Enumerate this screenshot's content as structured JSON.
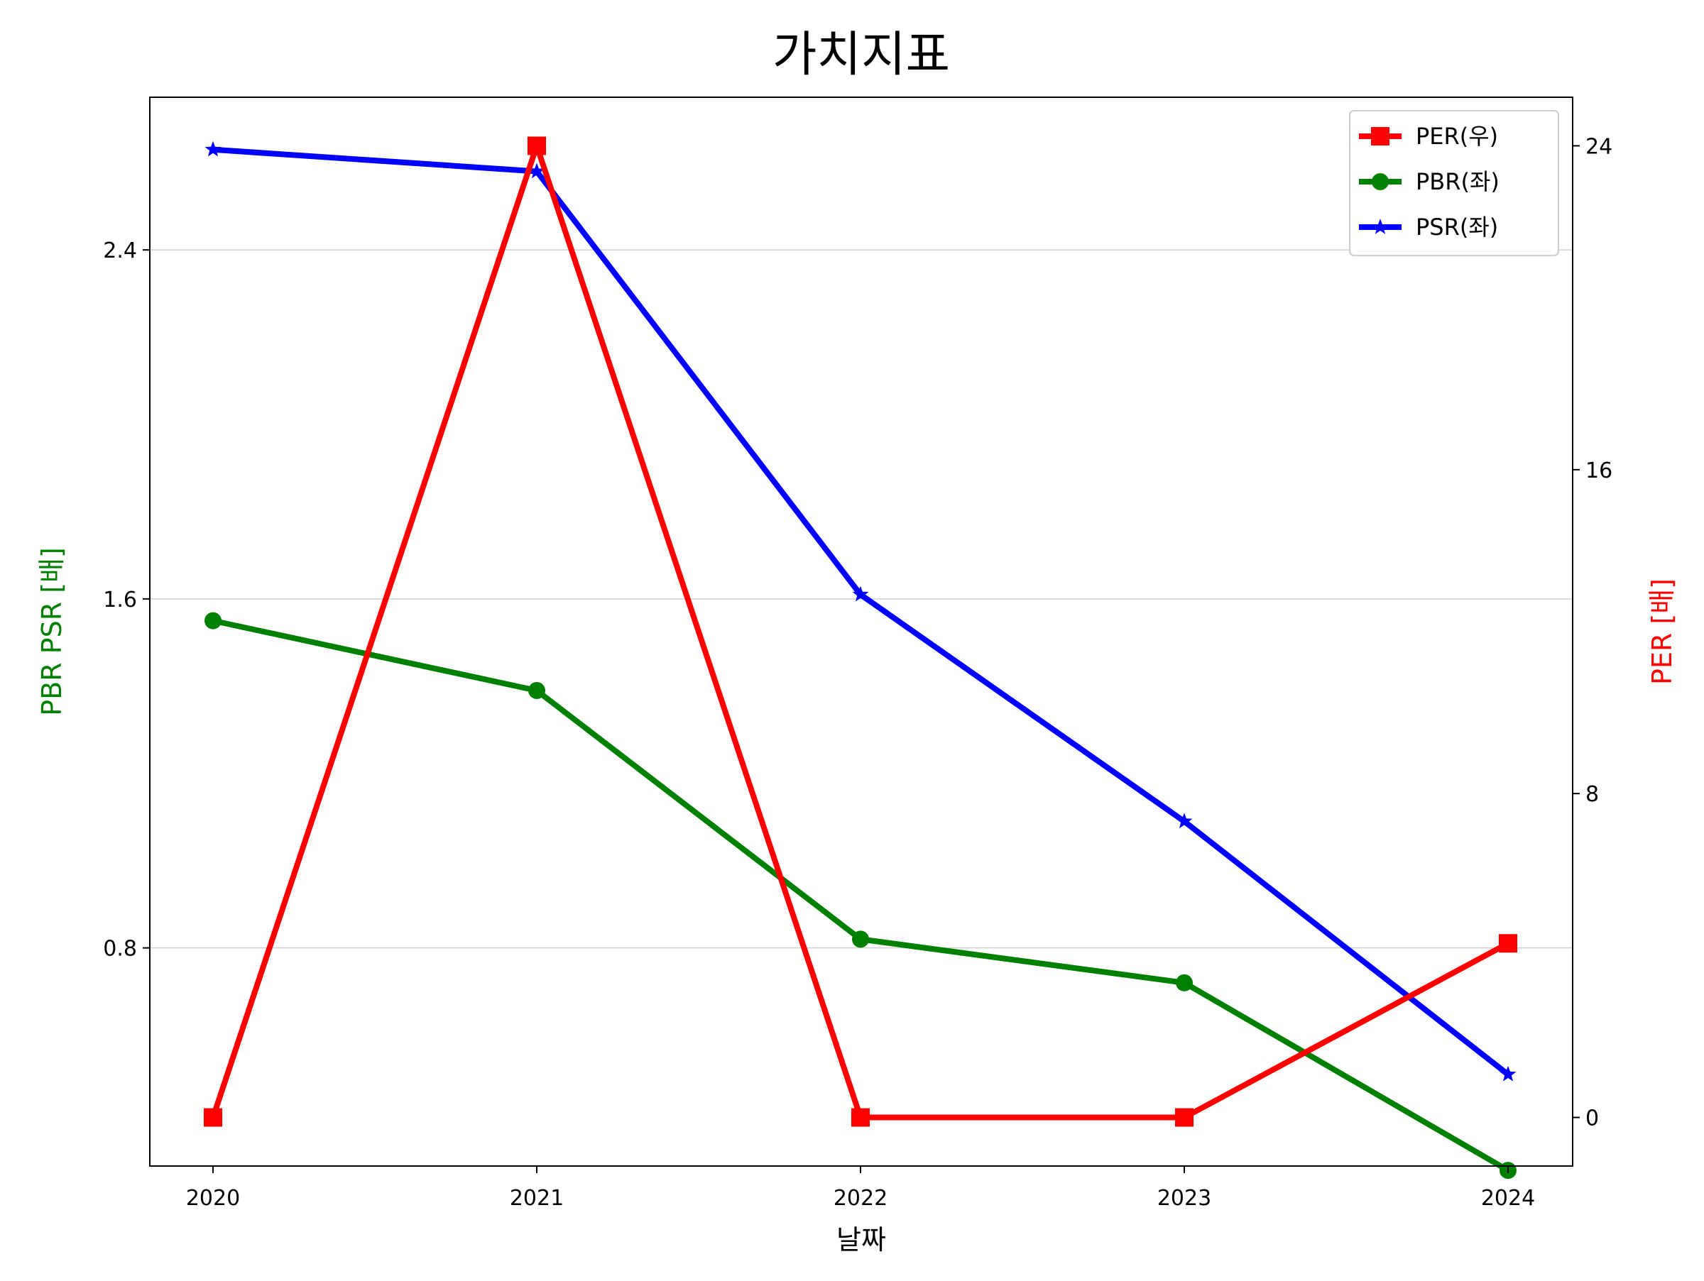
{
  "chart_data": {
    "type": "line",
    "title": "가치지표",
    "xlabel": "날짜",
    "ylabel_left": "PBR PSR [배]",
    "ylabel_right": "PER [배]",
    "categories": [
      "2020",
      "2021",
      "2022",
      "2023",
      "2024"
    ],
    "left_axis": {
      "ylim": [
        0.3,
        2.75
      ],
      "ticks": [
        0.8,
        1.6,
        2.4
      ],
      "tick_labels": [
        "0.8",
        "1.6",
        "2.4"
      ],
      "grid": true
    },
    "right_axis": {
      "ylim": [
        -1.2,
        25.2
      ],
      "ticks": [
        0,
        8,
        16,
        24
      ],
      "tick_labels": [
        "0",
        "8",
        "16",
        "24"
      ]
    },
    "series": [
      {
        "name": "PER(우)",
        "axis": "right",
        "color": "#ff0000",
        "marker": "square",
        "values": [
          0,
          24,
          0,
          0,
          4.3
        ]
      },
      {
        "name": "PBR(좌)",
        "axis": "left",
        "color": "#008000",
        "marker": "circle",
        "values": [
          1.55,
          1.39,
          0.82,
          0.72,
          0.29
        ]
      },
      {
        "name": "PSR(좌)",
        "axis": "left",
        "color": "#0000ff",
        "marker": "star",
        "values": [
          2.63,
          2.58,
          1.61,
          1.09,
          0.51
        ]
      }
    ],
    "legend": {
      "placement": "top-right",
      "entries": [
        "PER(우)",
        "PBR(좌)",
        "PSR(좌)"
      ]
    }
  }
}
